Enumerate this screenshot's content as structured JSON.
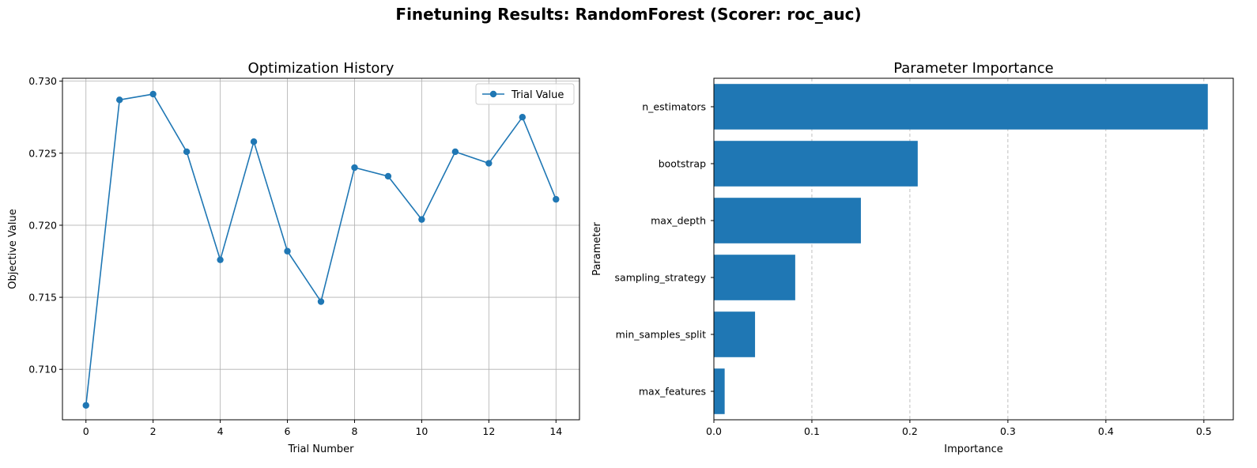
{
  "suptitle": "Finetuning Results: RandomForest (Scorer: roc_auc)",
  "colors": {
    "series": "#1f77b4",
    "grid": "#b0b0b0",
    "axis": "#000000"
  },
  "chart_data": [
    {
      "type": "line",
      "title": "Optimization History",
      "xlabel": "Trial Number",
      "ylabel": "Objective Value",
      "xlim": [
        -0.7,
        14.7
      ],
      "ylim": [
        0.7065,
        0.7302
      ],
      "xticks": [
        0,
        2,
        4,
        6,
        8,
        10,
        12,
        14
      ],
      "yticks": [
        0.71,
        0.715,
        0.72,
        0.725,
        0.73
      ],
      "ytick_labels": [
        "0.710",
        "0.715",
        "0.720",
        "0.725",
        "0.730"
      ],
      "grid": "both",
      "legend": "top-right",
      "series": [
        {
          "name": "Trial Value",
          "marker": "circle",
          "x": [
            0,
            1,
            2,
            3,
            4,
            5,
            6,
            7,
            8,
            9,
            10,
            11,
            12,
            13,
            14
          ],
          "values": [
            0.7075,
            0.7287,
            0.7291,
            0.7251,
            0.7176,
            0.7258,
            0.7182,
            0.7147,
            0.724,
            0.7234,
            0.7204,
            0.7251,
            0.7243,
            0.7275,
            0.7218
          ]
        }
      ]
    },
    {
      "type": "bar",
      "orientation": "horizontal",
      "title": "Parameter Importance",
      "xlabel": "Importance",
      "ylabel": "Parameter",
      "xlim": [
        0,
        0.53
      ],
      "xticks": [
        0.0,
        0.1,
        0.2,
        0.3,
        0.4,
        0.5
      ],
      "xtick_labels": [
        "0.0",
        "0.1",
        "0.2",
        "0.3",
        "0.4",
        "0.5"
      ],
      "grid": "x-dashed",
      "categories": [
        "n_estimators",
        "bootstrap",
        "max_depth",
        "sampling_strategy",
        "min_samples_split",
        "max_features"
      ],
      "values": [
        0.504,
        0.208,
        0.15,
        0.083,
        0.042,
        0.011
      ]
    }
  ]
}
